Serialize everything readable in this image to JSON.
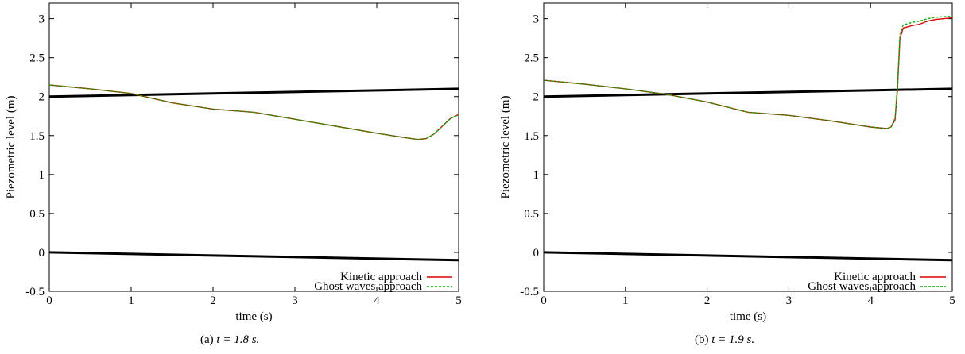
{
  "chart_data": [
    {
      "type": "line",
      "caption": {
        "label": "(a)",
        "math": "t = 1.8 s."
      },
      "xlabel": "time (s)",
      "ylabel": "Piezometric level (m)",
      "xlim": [
        0,
        5
      ],
      "ylim": [
        -0.5,
        3.2
      ],
      "xticks": [
        0,
        1,
        2,
        3,
        4,
        5
      ],
      "yticks": [
        -0.5,
        0,
        0.5,
        1,
        1.5,
        2,
        2.5,
        3
      ],
      "legend_position": "bottom-right",
      "series": [
        {
          "name": "",
          "color": "#000000",
          "x": [
            0,
            5
          ],
          "y": [
            2.0,
            2.1
          ]
        },
        {
          "name": "",
          "color": "#000000",
          "x": [
            0,
            5
          ],
          "y": [
            0.0,
            -0.1
          ]
        },
        {
          "name": "Kinetic approach",
          "color": "#e00000",
          "x": [
            0,
            0.5,
            1.0,
            1.5,
            2.0,
            2.5,
            3.0,
            3.5,
            4.0,
            4.3,
            4.5,
            4.6,
            4.7,
            4.8,
            4.9,
            5.0
          ],
          "y": [
            2.15,
            2.1,
            2.04,
            1.92,
            1.84,
            1.8,
            1.71,
            1.62,
            1.53,
            1.48,
            1.45,
            1.46,
            1.52,
            1.62,
            1.72,
            1.77
          ]
        },
        {
          "name": "Ghost waves approach",
          "color": "#00b800",
          "x": [
            0,
            0.5,
            1.0,
            1.5,
            2.0,
            2.5,
            3.0,
            3.5,
            4.0,
            4.3,
            4.5,
            4.6,
            4.7,
            4.8,
            4.9,
            5.0
          ],
          "y": [
            2.15,
            2.1,
            2.04,
            1.92,
            1.84,
            1.8,
            1.71,
            1.62,
            1.53,
            1.48,
            1.45,
            1.46,
            1.52,
            1.62,
            1.72,
            1.77
          ]
        }
      ]
    },
    {
      "type": "line",
      "caption": {
        "label": "(b)",
        "math": "t = 1.9 s."
      },
      "xlabel": "time (s)",
      "ylabel": "Piezometric level (m)",
      "xlim": [
        0,
        5
      ],
      "ylim": [
        -0.5,
        3.2
      ],
      "xticks": [
        0,
        1,
        2,
        3,
        4,
        5
      ],
      "yticks": [
        -0.5,
        0,
        0.5,
        1,
        1.5,
        2,
        2.5,
        3
      ],
      "legend_position": "bottom-right",
      "series": [
        {
          "name": "",
          "color": "#000000",
          "x": [
            0,
            5
          ],
          "y": [
            2.0,
            2.1
          ]
        },
        {
          "name": "",
          "color": "#000000",
          "x": [
            0,
            5
          ],
          "y": [
            0.0,
            -0.1
          ]
        },
        {
          "name": "Kinetic approach",
          "color": "#e00000",
          "x": [
            0,
            0.5,
            1.0,
            1.5,
            2.0,
            2.5,
            3.0,
            3.5,
            4.0,
            4.2,
            4.25,
            4.3,
            4.33,
            4.36,
            4.4,
            4.5,
            4.6,
            4.7,
            4.8,
            5.0
          ],
          "y": [
            2.21,
            2.16,
            2.1,
            2.03,
            1.93,
            1.8,
            1.76,
            1.69,
            1.61,
            1.59,
            1.61,
            1.7,
            2.1,
            2.75,
            2.88,
            2.91,
            2.93,
            2.97,
            2.99,
            3.01
          ]
        },
        {
          "name": "Ghost waves approach",
          "color": "#00b800",
          "x": [
            0,
            0.5,
            1.0,
            1.5,
            2.0,
            2.5,
            3.0,
            3.5,
            4.0,
            4.2,
            4.25,
            4.3,
            4.33,
            4.36,
            4.4,
            4.5,
            4.6,
            4.7,
            4.8,
            5.0
          ],
          "y": [
            2.21,
            2.16,
            2.1,
            2.03,
            1.93,
            1.8,
            1.76,
            1.69,
            1.61,
            1.59,
            1.61,
            1.72,
            2.15,
            2.8,
            2.92,
            2.95,
            2.97,
            3.0,
            3.02,
            3.03
          ]
        }
      ]
    }
  ]
}
